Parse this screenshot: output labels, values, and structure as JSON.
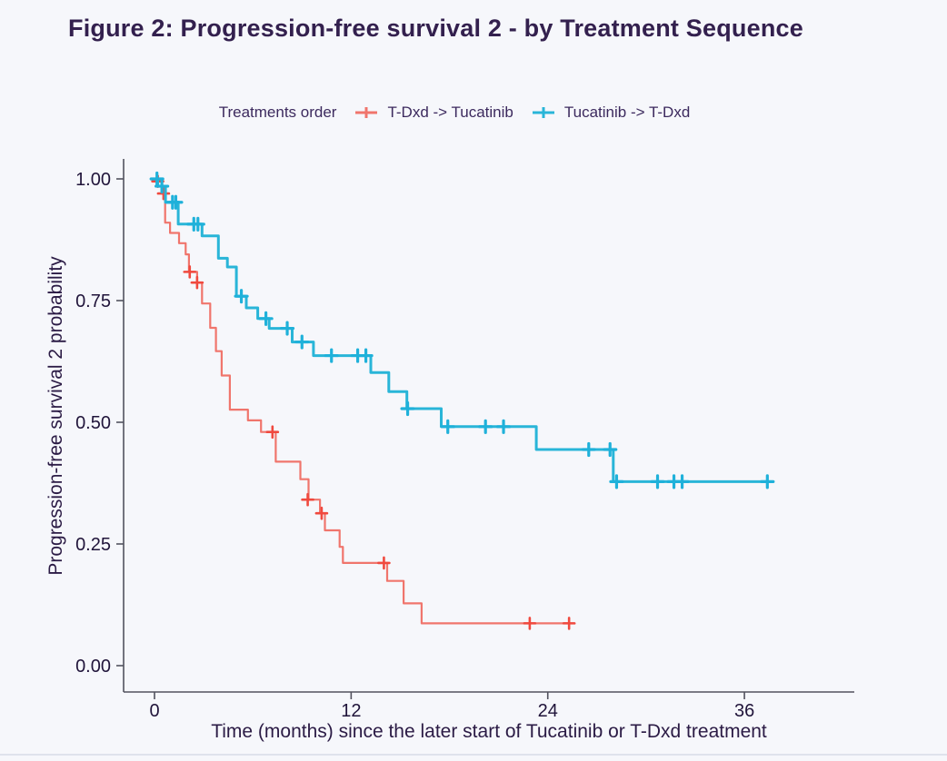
{
  "figure": {
    "title": "Figure 2: Progression-free survival 2 - by Treatment Sequence",
    "title_color": "#33204e",
    "background_color": "#f6f7fb",
    "axis_line_color": "#52525e",
    "tick_label_color": "#20143a"
  },
  "legend": {
    "title": "Treatments order",
    "items": [
      {
        "label": "T-Dxd -> Tucatinib",
        "color": "#f8766d"
      },
      {
        "label": "Tucatinib -> T-Dxd",
        "color": "#29b5d8"
      }
    ]
  },
  "chart_data": {
    "type": "line",
    "subtype": "kaplan-meier-step-survival",
    "title": "Figure 2: Progression-free survival 2 - by Treatment Sequence",
    "xlabel": "Time (months) since the later start of Tucatinib or T-Dxd treatment",
    "ylabel": "Progression-free survival 2 probability",
    "xlim": [
      0,
      42.6
    ],
    "ylim": [
      0,
      1
    ],
    "grid": false,
    "legend_position": "top",
    "x_ticks": [
      {
        "label": "0",
        "value": 0
      },
      {
        "label": "12",
        "value": 12
      },
      {
        "label": "24",
        "value": 24
      },
      {
        "label": "36",
        "value": 36
      }
    ],
    "y_ticks": [
      {
        "label": "1.00",
        "value": 1.0
      },
      {
        "label": "0.75",
        "value": 0.75
      },
      {
        "label": "0.50",
        "value": 0.5
      },
      {
        "label": "0.25",
        "value": 0.25
      },
      {
        "label": "0.00",
        "value": 0.0
      }
    ],
    "series": [
      {
        "name": "T-Dxd -> Tucatinib",
        "color": "#f0756c",
        "censor_color": "#f0493e",
        "line_width": 2.2,
        "end_t": 25.3,
        "steps": [
          [
            0.0,
            1.0
          ],
          [
            0.15,
            0.985
          ],
          [
            0.5,
            0.97
          ],
          [
            0.65,
            0.91
          ],
          [
            0.95,
            0.889
          ],
          [
            1.5,
            0.868
          ],
          [
            1.9,
            0.845
          ],
          [
            2.1,
            0.809
          ],
          [
            2.6,
            0.787
          ],
          [
            2.9,
            0.744
          ],
          [
            3.4,
            0.694
          ],
          [
            3.75,
            0.646
          ],
          [
            4.1,
            0.596
          ],
          [
            4.6,
            0.526
          ],
          [
            5.7,
            0.504
          ],
          [
            6.5,
            0.48
          ],
          [
            7.4,
            0.419
          ],
          [
            8.9,
            0.383
          ],
          [
            9.4,
            0.341
          ],
          [
            10.1,
            0.313
          ],
          [
            10.4,
            0.278
          ],
          [
            11.3,
            0.244
          ],
          [
            11.5,
            0.211
          ],
          [
            14.2,
            0.174
          ],
          [
            15.2,
            0.128
          ],
          [
            16.3,
            0.087
          ]
        ],
        "censors": [
          [
            0.2,
            0.995
          ],
          [
            0.55,
            0.97
          ],
          [
            2.15,
            0.809
          ],
          [
            2.6,
            0.787
          ],
          [
            7.2,
            0.48
          ],
          [
            9.35,
            0.341
          ],
          [
            10.2,
            0.313
          ],
          [
            14.0,
            0.211
          ],
          [
            22.9,
            0.087
          ],
          [
            25.3,
            0.087
          ]
        ]
      },
      {
        "name": "Tucatinib -> T-Dxd",
        "color": "#29b5d8",
        "censor_color": "#1fb1da",
        "line_width": 3.0,
        "end_t": 37.4,
        "steps": [
          [
            0.0,
            1.0
          ],
          [
            0.2,
            0.985
          ],
          [
            0.67,
            0.952
          ],
          [
            1.45,
            0.907
          ],
          [
            2.9,
            0.883
          ],
          [
            3.9,
            0.837
          ],
          [
            4.45,
            0.819
          ],
          [
            5.0,
            0.759
          ],
          [
            5.6,
            0.735
          ],
          [
            6.3,
            0.713
          ],
          [
            7.0,
            0.693
          ],
          [
            8.4,
            0.665
          ],
          [
            9.7,
            0.637
          ],
          [
            13.2,
            0.602
          ],
          [
            14.3,
            0.563
          ],
          [
            15.4,
            0.528
          ],
          [
            17.5,
            0.491
          ],
          [
            23.3,
            0.444
          ],
          [
            28.0,
            0.378
          ]
        ],
        "censors": [
          [
            0.15,
            1.0
          ],
          [
            0.45,
            0.985
          ],
          [
            1.1,
            0.952
          ],
          [
            1.3,
            0.952
          ],
          [
            2.4,
            0.907
          ],
          [
            2.65,
            0.907
          ],
          [
            5.3,
            0.759
          ],
          [
            6.8,
            0.713
          ],
          [
            8.1,
            0.693
          ],
          [
            9.0,
            0.665
          ],
          [
            10.8,
            0.637
          ],
          [
            12.4,
            0.637
          ],
          [
            12.9,
            0.637
          ],
          [
            15.45,
            0.528
          ],
          [
            17.9,
            0.491
          ],
          [
            20.2,
            0.491
          ],
          [
            21.3,
            0.491
          ],
          [
            26.5,
            0.444
          ],
          [
            27.8,
            0.444
          ],
          [
            28.2,
            0.378
          ],
          [
            30.7,
            0.378
          ],
          [
            31.7,
            0.378
          ],
          [
            32.2,
            0.378
          ],
          [
            37.4,
            0.378
          ]
        ]
      }
    ]
  }
}
